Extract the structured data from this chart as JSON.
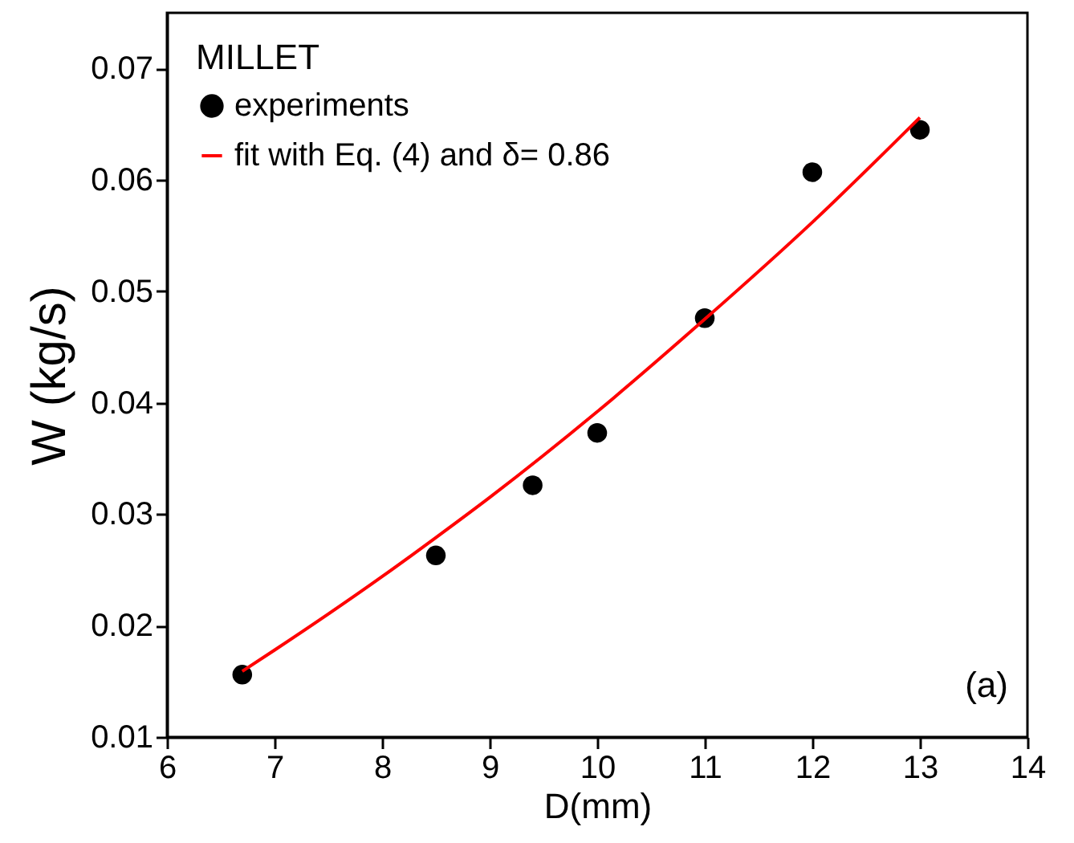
{
  "chart_data": {
    "type": "scatter",
    "xlabel": "D(mm)",
    "ylabel": "W (kg/s)",
    "legend_title": "MILLET",
    "legend": "top left",
    "grid": false,
    "xlim": [
      6,
      14
    ],
    "xticks": [
      6,
      7,
      8,
      9,
      10,
      11,
      12,
      13,
      14
    ],
    "ylim": [
      0.01,
      0.075
    ],
    "yticks": [
      0.01,
      0.02,
      0.03,
      0.04,
      0.05,
      0.06,
      0.07
    ],
    "annotations": [
      "(a)"
    ],
    "series": [
      {
        "name": "experiments",
        "marker": "circle",
        "color": "#000000",
        "x": [
          6.7,
          8.5,
          9.4,
          10,
          11,
          12,
          13
        ],
        "values": [
          0.0156,
          0.0263,
          0.0326,
          0.0373,
          0.0476,
          0.0607,
          0.0645
        ]
      },
      {
        "name": "fit with Eq. (4) and δ= 0.86",
        "type": "line",
        "marker": "none",
        "color": "#ff0000",
        "line_style": "solid",
        "x": [
          6.7,
          7,
          8,
          8.5,
          9,
          10,
          11,
          12,
          13
        ],
        "values": [
          0.0159,
          0.0178,
          0.0244,
          0.0279,
          0.0315,
          0.0392,
          0.0475,
          0.0562,
          0.0656
        ]
      }
    ]
  }
}
